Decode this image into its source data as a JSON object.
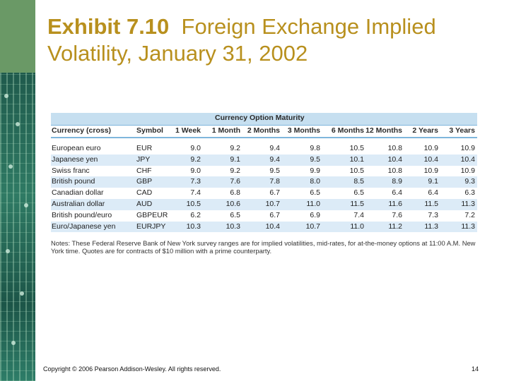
{
  "slide": {
    "title_bold": "Exhibit 7.10",
    "title_rest": "Foreign Exchange Implied Volatility, January 31, 2002",
    "footer": "Copyright © 2006 Pearson Addison-Wesley. All rights reserved.",
    "page_number": "14"
  },
  "table": {
    "super_header": "Currency Option Maturity",
    "columns": [
      "Currency (cross)",
      "Symbol",
      "1 Week",
      "1 Month",
      "2 Months",
      "3 Months",
      "6 Months",
      "12 Months",
      "2 Years",
      "3 Years"
    ],
    "rows": [
      {
        "currency": "European euro",
        "symbol": "EUR",
        "values": [
          "9.0",
          "9.2",
          "9.4",
          "9.8",
          "10.5",
          "10.8",
          "10.9",
          "10.9"
        ]
      },
      {
        "currency": "Japanese yen",
        "symbol": "JPY",
        "values": [
          "9.2",
          "9.1",
          "9.4",
          "9.5",
          "10.1",
          "10.4",
          "10.4",
          "10.4"
        ]
      },
      {
        "currency": "Swiss franc",
        "symbol": "CHF",
        "values": [
          "9.0",
          "9.2",
          "9.5",
          "9.9",
          "10.5",
          "10.8",
          "10.9",
          "10.9"
        ]
      },
      {
        "currency": "British pound",
        "symbol": "GBP",
        "values": [
          "7.3",
          "7.6",
          "7.8",
          "8.0",
          "8.5",
          "8.9",
          "9.1",
          "9.3"
        ]
      },
      {
        "currency": "Canadian dollar",
        "symbol": "CAD",
        "values": [
          "7.4",
          "6.8",
          "6.7",
          "6.5",
          "6.5",
          "6.4",
          "6.4",
          "6.3"
        ]
      },
      {
        "currency": "Australian dollar",
        "symbol": "AUD",
        "values": [
          "10.5",
          "10.6",
          "10.7",
          "11.0",
          "11.5",
          "11.6",
          "11.5",
          "11.3"
        ]
      },
      {
        "currency": "British pound/euro",
        "symbol": "GBPEUR",
        "values": [
          "6.2",
          "6.5",
          "6.7",
          "6.9",
          "7.4",
          "7.6",
          "7.3",
          "7.2"
        ]
      },
      {
        "currency": "Euro/Japanese yen",
        "symbol": "EURJPY",
        "values": [
          "10.3",
          "10.3",
          "10.4",
          "10.7",
          "11.0",
          "11.2",
          "11.3",
          "11.3"
        ]
      }
    ],
    "notes": "Notes: These Federal Reserve Bank of New York survey ranges are for implied volatilities, mid-rates, for at-the-money options at 11:00 A.M. New York time. Quotes are for contracts of $10 million with a prime counterparty."
  }
}
